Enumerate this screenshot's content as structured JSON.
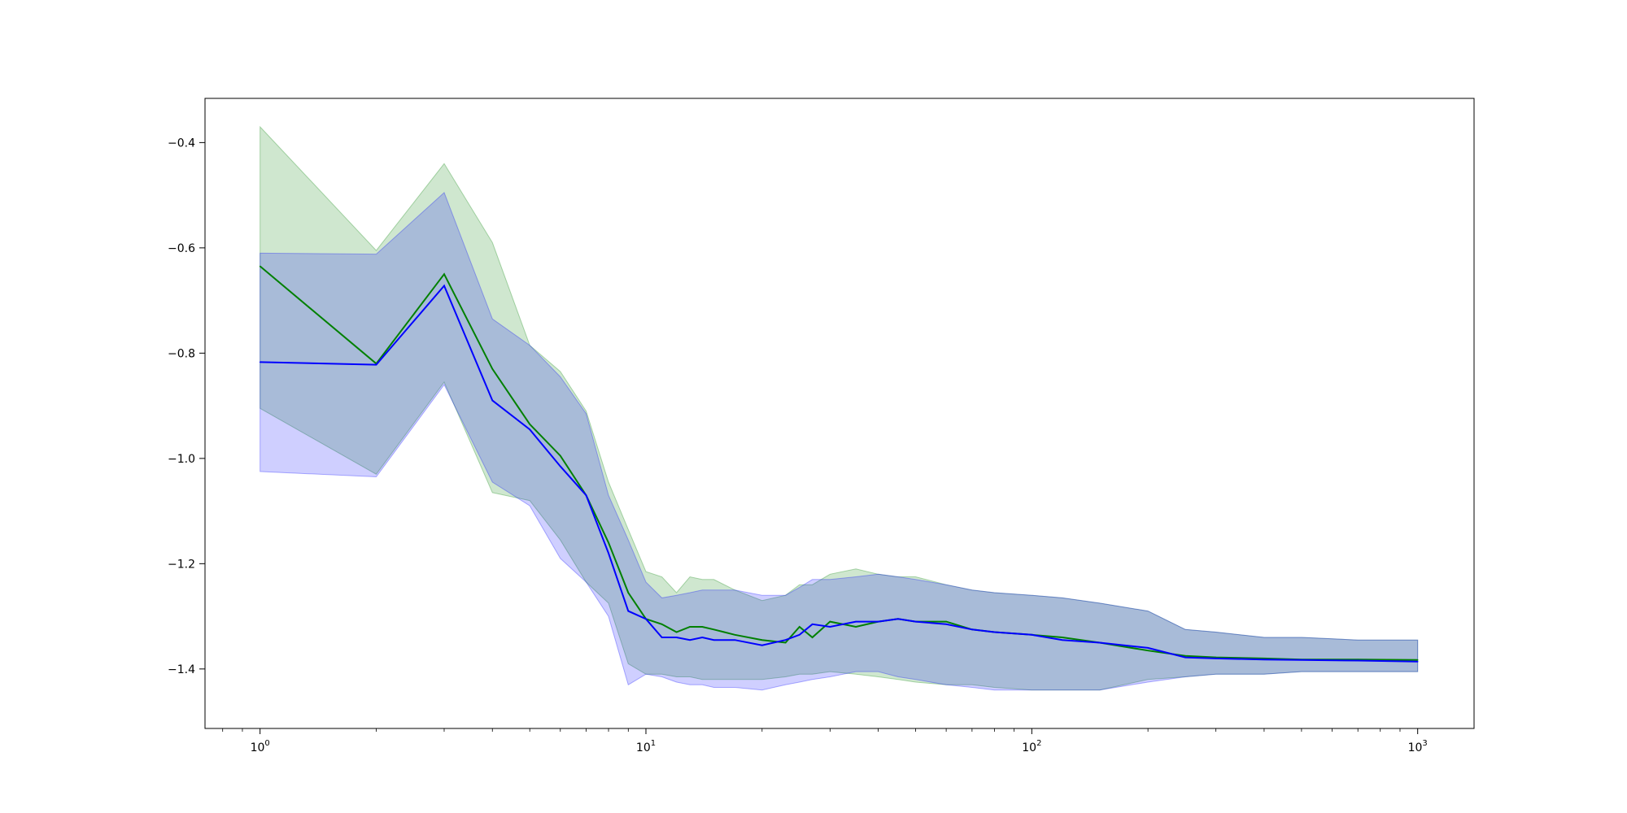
{
  "chart_data": {
    "type": "line",
    "title": "",
    "xlabel": "",
    "ylabel": "",
    "xscale": "log",
    "xlim": [
      0.72,
      1400
    ],
    "ylim": [
      -1.513,
      -0.316
    ],
    "grid": false,
    "x_ticks": [
      {
        "value": 1,
        "base": "10",
        "exp": "0"
      },
      {
        "value": 10,
        "base": "10",
        "exp": "1"
      },
      {
        "value": 100,
        "base": "10",
        "exp": "2"
      },
      {
        "value": 1000,
        "base": "10",
        "exp": "3"
      }
    ],
    "y_ticks": [
      {
        "value": -0.4,
        "label": "−0.4"
      },
      {
        "value": -0.6,
        "label": "−0.6"
      },
      {
        "value": -0.8,
        "label": "−0.8"
      },
      {
        "value": -1.0,
        "label": "−1.0"
      },
      {
        "value": -1.2,
        "label": "−1.2"
      },
      {
        "value": -1.4,
        "label": "−1.4"
      }
    ],
    "series": [
      {
        "color": "#008000",
        "band_color": "#008000",
        "band_opacity": 0.19,
        "x": [
          1,
          2,
          3,
          4,
          5,
          6,
          7,
          8,
          9,
          10,
          11,
          12,
          13,
          14,
          15,
          17,
          20,
          23,
          25,
          27,
          30,
          35,
          40,
          45,
          50,
          60,
          70,
          80,
          100,
          120,
          150,
          200,
          250,
          300,
          400,
          500,
          700,
          1000
        ],
        "y": [
          -0.635,
          -0.82,
          -0.65,
          -0.83,
          -0.935,
          -0.995,
          -1.07,
          -1.16,
          -1.255,
          -1.305,
          -1.315,
          -1.33,
          -1.32,
          -1.32,
          -1.325,
          -1.335,
          -1.345,
          -1.35,
          -1.32,
          -1.34,
          -1.31,
          -1.32,
          -1.31,
          -1.305,
          -1.31,
          -1.31,
          -1.325,
          -1.33,
          -1.335,
          -1.34,
          -1.35,
          -1.365,
          -1.375,
          -1.378,
          -1.38,
          -1.382,
          -1.382,
          -1.383
        ],
        "lower": [
          -0.905,
          -1.03,
          -0.855,
          -1.065,
          -1.08,
          -1.155,
          -1.235,
          -1.275,
          -1.39,
          -1.41,
          -1.41,
          -1.415,
          -1.415,
          -1.42,
          -1.42,
          -1.42,
          -1.42,
          -1.415,
          -1.41,
          -1.41,
          -1.405,
          -1.41,
          -1.415,
          -1.42,
          -1.425,
          -1.43,
          -1.43,
          -1.435,
          -1.44,
          -1.44,
          -1.44,
          -1.42,
          -1.415,
          -1.41,
          -1.41,
          -1.405,
          -1.405,
          -1.405
        ],
        "upper": [
          -0.37,
          -0.605,
          -0.44,
          -0.59,
          -0.785,
          -0.835,
          -0.91,
          -1.045,
          -1.135,
          -1.215,
          -1.225,
          -1.255,
          -1.225,
          -1.23,
          -1.23,
          -1.25,
          -1.27,
          -1.26,
          -1.24,
          -1.24,
          -1.22,
          -1.21,
          -1.22,
          -1.225,
          -1.225,
          -1.24,
          -1.25,
          -1.255,
          -1.26,
          -1.265,
          -1.275,
          -1.29,
          -1.325,
          -1.33,
          -1.34,
          -1.34,
          -1.345,
          -1.345
        ]
      },
      {
        "color": "#0000ff",
        "band_color": "#0000ff",
        "band_opacity": 0.19,
        "x": [
          1,
          2,
          3,
          4,
          5,
          6,
          7,
          8,
          9,
          10,
          11,
          12,
          13,
          14,
          15,
          17,
          20,
          23,
          25,
          27,
          30,
          35,
          40,
          45,
          50,
          60,
          70,
          80,
          100,
          120,
          150,
          200,
          250,
          300,
          400,
          500,
          700,
          1000
        ],
        "y": [
          -0.817,
          -0.822,
          -0.672,
          -0.89,
          -0.945,
          -1.015,
          -1.07,
          -1.18,
          -1.29,
          -1.305,
          -1.34,
          -1.34,
          -1.345,
          -1.34,
          -1.345,
          -1.345,
          -1.355,
          -1.345,
          -1.335,
          -1.315,
          -1.32,
          -1.31,
          -1.31,
          -1.305,
          -1.31,
          -1.315,
          -1.325,
          -1.33,
          -1.335,
          -1.345,
          -1.35,
          -1.36,
          -1.378,
          -1.38,
          -1.382,
          -1.383,
          -1.384,
          -1.386
        ],
        "lower": [
          -1.025,
          -1.035,
          -0.86,
          -1.045,
          -1.09,
          -1.19,
          -1.235,
          -1.3,
          -1.43,
          -1.41,
          -1.415,
          -1.425,
          -1.43,
          -1.43,
          -1.435,
          -1.435,
          -1.44,
          -1.43,
          -1.425,
          -1.42,
          -1.415,
          -1.405,
          -1.405,
          -1.415,
          -1.42,
          -1.43,
          -1.435,
          -1.44,
          -1.44,
          -1.44,
          -1.44,
          -1.425,
          -1.415,
          -1.41,
          -1.41,
          -1.405,
          -1.405,
          -1.405
        ],
        "upper": [
          -0.61,
          -0.612,
          -0.495,
          -0.735,
          -0.785,
          -0.845,
          -0.915,
          -1.07,
          -1.155,
          -1.235,
          -1.265,
          -1.26,
          -1.255,
          -1.25,
          -1.25,
          -1.25,
          -1.26,
          -1.26,
          -1.245,
          -1.23,
          -1.23,
          -1.225,
          -1.22,
          -1.225,
          -1.23,
          -1.24,
          -1.25,
          -1.255,
          -1.26,
          -1.265,
          -1.275,
          -1.29,
          -1.325,
          -1.33,
          -1.34,
          -1.34,
          -1.345,
          -1.345
        ]
      }
    ]
  }
}
